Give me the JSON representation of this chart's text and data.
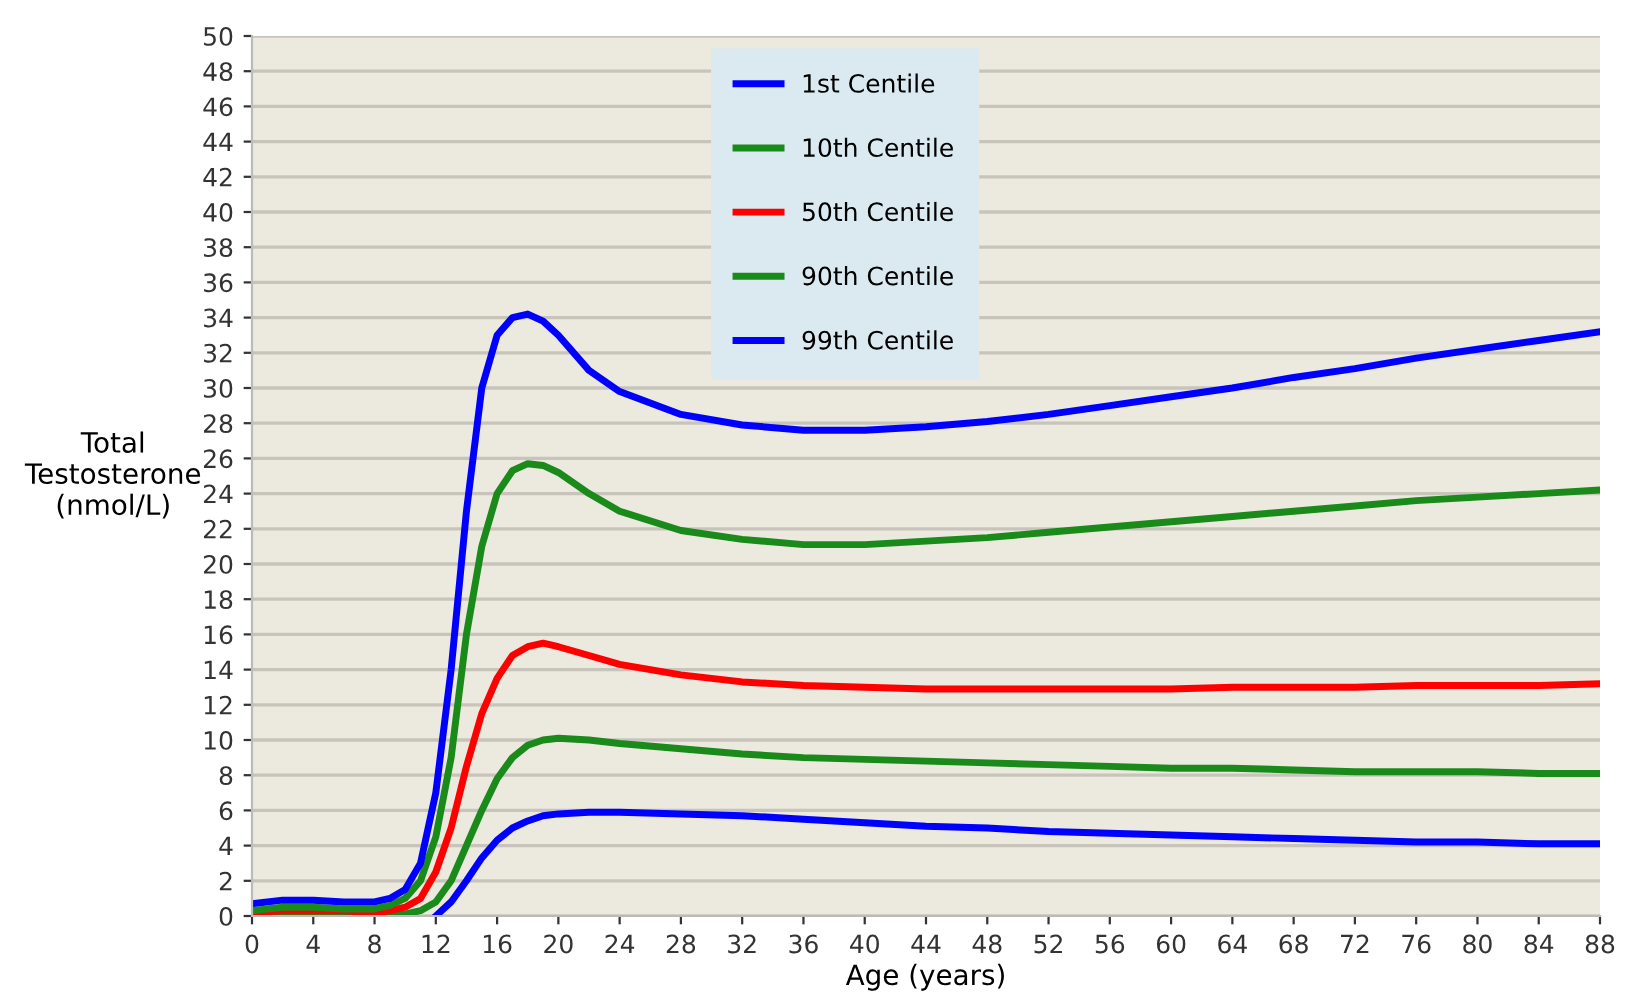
{
  "chart_data": {
    "type": "line",
    "xlabel": "Age (years)",
    "ylabel": "Total\nTestosterone\n(nmol/L)",
    "xlim": [
      0,
      88
    ],
    "xticks": [
      0,
      4,
      8,
      12,
      16,
      20,
      24,
      28,
      32,
      36,
      40,
      44,
      48,
      52,
      56,
      60,
      64,
      68,
      72,
      76,
      80,
      84,
      88
    ],
    "ylim": [
      0,
      50
    ],
    "yticks": [
      0,
      2,
      4,
      6,
      8,
      10,
      12,
      14,
      16,
      18,
      20,
      22,
      24,
      26,
      28,
      30,
      32,
      34,
      36,
      38,
      40,
      42,
      44,
      46,
      48,
      50
    ],
    "grid": "y",
    "legend": "top",
    "marker": "none",
    "line_style": "solid",
    "series": [
      {
        "name": "1st Centile",
        "color": "#0000ff",
        "x": [
          12,
          13,
          14,
          15,
          16,
          17,
          18,
          19,
          20,
          22,
          24,
          28,
          32,
          36,
          40,
          44,
          48,
          52,
          56,
          60,
          64,
          68,
          72,
          76,
          80,
          84,
          88
        ],
        "values": [
          0,
          0.8,
          2,
          3.3,
          4.3,
          5,
          5.4,
          5.7,
          5.8,
          5.9,
          5.9,
          5.8,
          5.7,
          5.5,
          5.3,
          5.1,
          5,
          4.8,
          4.7,
          4.6,
          4.5,
          4.4,
          4.3,
          4.2,
          4.2,
          4.1,
          4.1
        ]
      },
      {
        "name": "10th Centile",
        "color": "#1a8a1a",
        "x": [
          0,
          2,
          4,
          6,
          8,
          10,
          11,
          12,
          13,
          14,
          15,
          16,
          17,
          18,
          19,
          20,
          22,
          24,
          28,
          32,
          36,
          40,
          44,
          48,
          52,
          56,
          60,
          64,
          68,
          72,
          76,
          80,
          84,
          88
        ],
        "values": [
          0,
          0,
          0,
          0,
          0,
          0.1,
          0.3,
          0.8,
          2,
          4,
          6,
          7.8,
          9,
          9.7,
          10,
          10.1,
          10,
          9.8,
          9.5,
          9.2,
          9,
          8.9,
          8.8,
          8.7,
          8.6,
          8.5,
          8.4,
          8.4,
          8.3,
          8.2,
          8.2,
          8.2,
          8.1,
          8.1
        ]
      },
      {
        "name": "50th Centile",
        "color": "#ff0000",
        "x": [
          0,
          2,
          4,
          6,
          8,
          9,
          10,
          11,
          12,
          13,
          14,
          15,
          16,
          17,
          18,
          19,
          20,
          22,
          24,
          28,
          32,
          36,
          40,
          44,
          48,
          52,
          56,
          60,
          64,
          68,
          72,
          76,
          80,
          84,
          88
        ],
        "values": [
          0.2,
          0.3,
          0.3,
          0.3,
          0.2,
          0.3,
          0.5,
          1,
          2.5,
          5,
          8.5,
          11.5,
          13.5,
          14.8,
          15.3,
          15.5,
          15.3,
          14.8,
          14.3,
          13.7,
          13.3,
          13.1,
          13,
          12.9,
          12.9,
          12.9,
          12.9,
          12.9,
          13,
          13,
          13,
          13.1,
          13.1,
          13.1,
          13.2
        ]
      },
      {
        "name": "90th Centile",
        "color": "#1a8a1a",
        "x": [
          0,
          2,
          4,
          6,
          8,
          9,
          10,
          11,
          12,
          13,
          14,
          15,
          16,
          17,
          18,
          19,
          20,
          22,
          24,
          28,
          32,
          36,
          40,
          44,
          48,
          52,
          56,
          60,
          64,
          68,
          72,
          76,
          80,
          84,
          88
        ],
        "values": [
          0.3,
          0.5,
          0.5,
          0.4,
          0.4,
          0.6,
          1,
          2,
          4.5,
          9,
          16,
          21,
          24,
          25.3,
          25.7,
          25.6,
          25.2,
          24,
          23,
          21.9,
          21.4,
          21.1,
          21.1,
          21.3,
          21.5,
          21.8,
          22.1,
          22.4,
          22.7,
          23,
          23.3,
          23.6,
          23.8,
          24,
          24.2
        ]
      },
      {
        "name": "99th Centile",
        "color": "#0000ff",
        "x": [
          0,
          2,
          4,
          6,
          8,
          9,
          10,
          11,
          12,
          13,
          14,
          15,
          16,
          17,
          18,
          19,
          20,
          22,
          24,
          28,
          32,
          36,
          40,
          44,
          48,
          52,
          56,
          60,
          64,
          68,
          72,
          76,
          80,
          84,
          88
        ],
        "values": [
          0.7,
          0.9,
          0.9,
          0.8,
          0.8,
          1,
          1.5,
          3,
          7,
          14,
          23,
          30,
          33,
          34,
          34.2,
          33.8,
          33,
          31,
          29.8,
          28.5,
          27.9,
          27.6,
          27.6,
          27.8,
          28.1,
          28.5,
          29,
          29.5,
          30,
          30.6,
          31.1,
          31.7,
          32.2,
          32.7,
          33.2
        ]
      }
    ]
  }
}
